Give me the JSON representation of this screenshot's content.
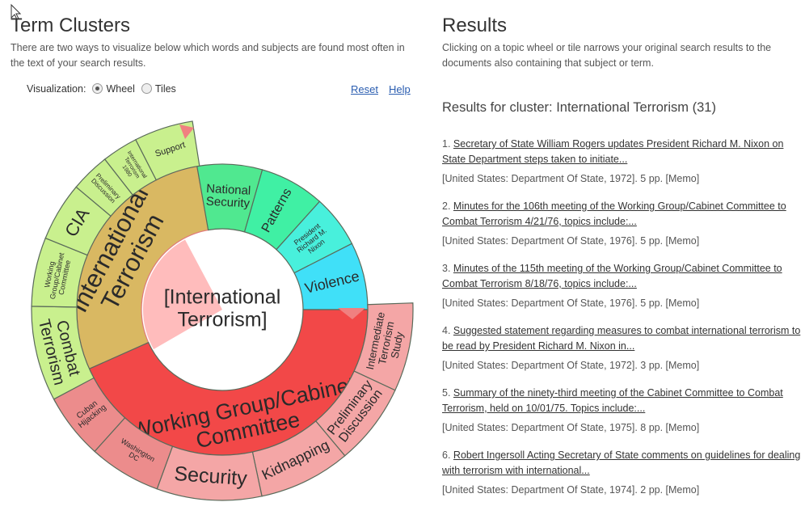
{
  "left": {
    "title": "Term Clusters",
    "description": "There are two ways to visualize below which words and subjects are found most often in the text of your search results.",
    "visualization_label": "Visualization:",
    "options": [
      "Wheel",
      "Tiles"
    ],
    "links": [
      "Reset",
      "Help"
    ],
    "wheel": {
      "center_label": [
        "[International",
        "Terrorism]"
      ],
      "inner_ring": [
        {
          "lines": [
            "International",
            "Terrorism"
          ]
        },
        {
          "lines": [
            "National",
            "Security"
          ]
        },
        {
          "lines": [
            "Patterns"
          ]
        },
        {
          "lines": [
            "President",
            "Richard M.",
            "Nixon"
          ]
        },
        {
          "lines": [
            "Violence"
          ]
        },
        {
          "lines": [
            "Working Group/Cabinet",
            "Committee"
          ]
        }
      ],
      "outer_ring": [
        {
          "lines": [
            "Combat",
            "Terrorism"
          ]
        },
        {
          "lines": [
            "Working",
            "Group/Cabinet",
            "Committee"
          ]
        },
        {
          "lines": [
            "CIA"
          ]
        },
        {
          "lines": [
            "Preliminary",
            "Discussion"
          ]
        },
        {
          "lines": [
            "International",
            "Terrorism",
            "1980"
          ]
        },
        {
          "lines": [
            "Support"
          ]
        },
        {
          "lines": [
            "Intermediate",
            "Terrorism",
            "Study"
          ]
        },
        {
          "lines": [
            "Preliminary",
            "Discussion"
          ]
        },
        {
          "lines": [
            "Kidnapping"
          ]
        },
        {
          "lines": [
            "Security"
          ]
        },
        {
          "lines": [
            "Washington",
            "DC"
          ]
        },
        {
          "lines": [
            "Cuban",
            "Hijacking"
          ]
        }
      ]
    }
  },
  "right": {
    "title": "Results",
    "description": "Clicking on a topic wheel or tile narrows your original search results to the documents also containing that subject or term.",
    "cluster_heading": "Results for cluster: International Terrorism (31)",
    "results": [
      {
        "number": "1.",
        "link": "Secretary of State William Rogers updates President Richard M. Nixon on State Department steps taken to initiate...",
        "citation": "[United States: Department Of State, 1972]. 5 pp. [Memo]"
      },
      {
        "number": "2.",
        "link": "Minutes for the 106th meeting of the Working Group/Cabinet Committee to Combat Terrorism 4/21/76, topics include:...",
        "citation": "[United States: Department Of State, 1976]. 5 pp. [Memo]"
      },
      {
        "number": "3.",
        "link": "Minutes of the 115th meeting of the Working Group/Cabinet Committee to Combat Terrorism 8/18/76, topics include:...",
        "citation": "[United States: Department Of State, 1976]. 5 pp. [Memo]"
      },
      {
        "number": "4.",
        "link": "Suggested statement regarding measures to combat international terrorism to be read by President Richard M. Nixon in...",
        "citation": "[United States: Department Of State, 1972]. 3 pp. [Memo]"
      },
      {
        "number": "5.",
        "link": "Summary of the ninety-third meeting of the Cabinet Committee to Combat Terrorism, held on 10/01/75. Topics include:...",
        "citation": "[United States: Department Of State, 1975]. 8 pp. [Memo]"
      },
      {
        "number": "6.",
        "link": "Robert Ingersoll Acting Secretary of State comments on guidelines for dealing with terrorism with international...",
        "citation": "[United States: Department Of State, 1974]. 2 pp. [Memo]"
      }
    ]
  }
}
